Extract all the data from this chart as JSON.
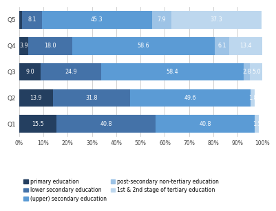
{
  "categories": [
    "Q1",
    "Q2",
    "Q3",
    "Q4",
    "Q5"
  ],
  "series": [
    {
      "name": "primary education",
      "values": [
        15.5,
        13.9,
        9.0,
        3.9,
        1.3
      ],
      "color": "#243F60"
    },
    {
      "name": "lower secondary education",
      "values": [
        40.8,
        31.8,
        24.9,
        18.0,
        8.1
      ],
      "color": "#4472A8"
    },
    {
      "name": "(upper) secondary education",
      "values": [
        40.8,
        49.6,
        58.4,
        58.6,
        45.3
      ],
      "color": "#5B9BD5"
    },
    {
      "name": "post-secondary non-tertiary education",
      "values": [
        0.0,
        0.0,
        2.8,
        6.1,
        7.9
      ],
      "color": "#9DC3E6"
    },
    {
      "name": "1st & 2nd stage of tertiary education",
      "values": [
        1.5,
        1.8,
        5.0,
        13.4,
        37.3
      ],
      "color": "#BDD7EE"
    }
  ],
  "bar_labels": [
    [
      15.5,
      40.8,
      40.8,
      null,
      1.5
    ],
    [
      13.9,
      31.8,
      49.6,
      null,
      1.8
    ],
    [
      9.0,
      24.9,
      58.4,
      2.8,
      5.0
    ],
    [
      3.9,
      18.0,
      58.6,
      6.1,
      13.4
    ],
    [
      1.3,
      8.1,
      45.3,
      7.9,
      37.3
    ]
  ],
  "legend_col1": [
    "primary education",
    "(upper) secondary education",
    "1st & 2nd stage of tertiary education"
  ],
  "legend_col2": [
    "lower secondary education",
    "post-secondary non-tertiary education"
  ],
  "xlim": [
    0,
    100
  ],
  "background_color": "#FFFFFF",
  "grid_color": "#C0C0C0",
  "text_color": "#404040",
  "label_fontsize": 5.8,
  "tick_fontsize": 5.5,
  "ytick_fontsize": 6.5,
  "legend_fontsize": 5.5,
  "bar_height": 0.68
}
